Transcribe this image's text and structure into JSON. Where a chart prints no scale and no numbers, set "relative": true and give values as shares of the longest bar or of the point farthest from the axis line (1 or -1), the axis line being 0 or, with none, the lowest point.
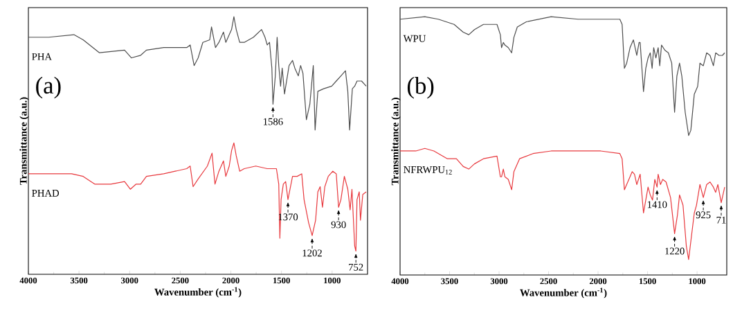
{
  "chart_data": [
    {
      "type": "line",
      "relative": true,
      "xlim": [
        4000,
        650
      ],
      "xticks": [
        4000,
        3500,
        3000,
        2500,
        2000,
        1500,
        1000
      ],
      "xlabel": "Wavenumber (cm$^{-1}$)",
      "ylabel": "Transmittance (a.u.)",
      "series": [
        {
          "name": "PHA",
          "color": "#4d4d4d",
          "x": [
            4000,
            3800,
            3550,
            3459,
            3300,
            3050,
            2982,
            2891,
            2834,
            2663,
            2550,
            2436,
            2402,
            2363,
            2323,
            2277,
            2209,
            2191,
            2152,
            2118,
            2073,
            2050,
            2016,
            1993,
            1970,
            1947,
            1913,
            1868,
            1777,
            1697,
            1663,
            1641,
            1618,
            1595,
            1584,
            1561,
            1543,
            1527,
            1509,
            1493,
            1470,
            1425,
            1391,
            1368,
            1334,
            1311,
            1288,
            1254,
            1220,
            1186,
            1168,
            1141,
            1084,
            1004,
            959,
            913,
            868,
            845,
            827,
            800,
            777,
            754,
            709,
            663
          ],
          "values": [
            0.92,
            0.92,
            0.93,
            0.91,
            0.86,
            0.87,
            0.84,
            0.85,
            0.87,
            0.88,
            0.88,
            0.88,
            0.89,
            0.81,
            0.84,
            0.9,
            0.91,
            0.96,
            0.88,
            0.9,
            0.94,
            0.9,
            0.93,
            0.95,
            1.0,
            0.95,
            0.9,
            0.9,
            0.92,
            0.95,
            0.92,
            0.89,
            0.9,
            0.8,
            0.66,
            0.77,
            0.92,
            0.81,
            0.73,
            0.8,
            0.7,
            0.81,
            0.83,
            0.8,
            0.77,
            0.81,
            0.78,
            0.6,
            0.66,
            0.81,
            0.56,
            0.71,
            0.72,
            0.73,
            0.75,
            0.77,
            0.79,
            0.71,
            0.56,
            0.72,
            0.73,
            0.75,
            0.75,
            0.73
          ]
        },
        {
          "name": "PHAD",
          "color": "#e8383d",
          "x": [
            4000,
            3800,
            3686,
            3573,
            3459,
            3345,
            3186,
            3050,
            2993,
            2936,
            2891,
            2834,
            2663,
            2550,
            2436,
            2402,
            2373,
            2323,
            2232,
            2186,
            2157,
            2118,
            2073,
            2050,
            2016,
            1993,
            1970,
            1947,
            1913,
            1868,
            1754,
            1641,
            1550,
            1527,
            1516,
            1504,
            1482,
            1459,
            1436,
            1391,
            1345,
            1300,
            1277,
            1232,
            1197,
            1163,
            1141,
            1118,
            1095,
            1072,
            1038,
            993,
            959,
            936,
            913,
            879,
            845,
            822,
            804,
            777,
            765,
            754,
            732,
            720,
            697,
            663
          ],
          "values": [
            0.39,
            0.39,
            0.39,
            0.39,
            0.38,
            0.35,
            0.35,
            0.36,
            0.33,
            0.35,
            0.35,
            0.38,
            0.39,
            0.4,
            0.41,
            0.42,
            0.34,
            0.37,
            0.42,
            0.47,
            0.35,
            0.4,
            0.44,
            0.38,
            0.42,
            0.48,
            0.51,
            0.46,
            0.4,
            0.41,
            0.42,
            0.41,
            0.41,
            0.35,
            0.14,
            0.29,
            0.35,
            0.36,
            0.29,
            0.38,
            0.38,
            0.39,
            0.29,
            0.2,
            0.15,
            0.21,
            0.32,
            0.34,
            0.26,
            0.34,
            0.38,
            0.4,
            0.39,
            0.26,
            0.29,
            0.38,
            0.33,
            0.25,
            0.33,
            0.11,
            0.09,
            0.29,
            0.32,
            0.21,
            0.31,
            0.32
          ]
        }
      ],
      "annotations": [
        "(a)",
        {
          "text": "1586",
          "x": 1584,
          "y": 0.66
        },
        {
          "text": "1370",
          "x": 1436,
          "y": 0.29
        },
        {
          "text": "1202",
          "x": 1197,
          "y": 0.15
        },
        {
          "text": "930",
          "x": 936,
          "y": 0.26
        },
        {
          "text": "752",
          "x": 765,
          "y": 0.09
        }
      ]
    },
    {
      "type": "line",
      "relative": true,
      "xlim": [
        4000,
        700
      ],
      "xticks": [
        4000,
        3500,
        3000,
        2500,
        2000,
        1500,
        1000
      ],
      "xlabel": "Wavenumber (cm$^{-1}$)",
      "ylabel": "Transmittance (a.u.)",
      "series": [
        {
          "name": "WPU",
          "color": "#4d4d4d",
          "x": [
            4000,
            3750,
            3613,
            3454,
            3362,
            3306,
            3249,
            3158,
            3021,
            2987,
            2975,
            2957,
            2941,
            2907,
            2873,
            2850,
            2816,
            2725,
            2474,
            2201,
            1973,
            1780,
            1757,
            1734,
            1711,
            1677,
            1643,
            1609,
            1586,
            1575,
            1564,
            1541,
            1518,
            1495,
            1473,
            1454,
            1438,
            1416,
            1393,
            1377,
            1359,
            1325,
            1290,
            1256,
            1227,
            1204,
            1177,
            1154,
            1120,
            1085,
            1063,
            1028,
            994,
            971,
            937,
            903,
            869,
            835,
            812,
            778,
            744,
            721
          ],
          "values": [
            0.99,
            1.0,
            0.99,
            0.97,
            0.94,
            0.93,
            0.95,
            0.97,
            0.97,
            0.93,
            0.88,
            0.9,
            0.89,
            0.88,
            0.86,
            0.92,
            0.96,
            0.98,
            1.0,
            0.99,
            0.99,
            0.99,
            0.97,
            0.8,
            0.82,
            0.88,
            0.91,
            0.85,
            0.9,
            0.9,
            0.84,
            0.71,
            0.8,
            0.84,
            0.86,
            0.8,
            0.88,
            0.84,
            0.88,
            0.81,
            0.89,
            0.87,
            0.86,
            0.82,
            0.63,
            0.77,
            0.82,
            0.77,
            0.63,
            0.54,
            0.56,
            0.7,
            0.73,
            0.82,
            0.81,
            0.86,
            0.85,
            0.81,
            0.86,
            0.85,
            0.85,
            0.86
          ]
        },
        {
          "name": "NFRWPU$_{12}$",
          "color": "#e8383d",
          "x": [
            4000,
            3841,
            3750,
            3658,
            3522,
            3431,
            3362,
            3306,
            3249,
            3158,
            3021,
            2987,
            2975,
            2957,
            2941,
            2907,
            2873,
            2850,
            2793,
            2657,
            2474,
            2201,
            1973,
            1780,
            1757,
            1734,
            1700,
            1655,
            1632,
            1609,
            1575,
            1541,
            1518,
            1495,
            1473,
            1450,
            1427,
            1404,
            1393,
            1370,
            1347,
            1313,
            1268,
            1227,
            1199,
            1177,
            1142,
            1108,
            1085,
            1063,
            1028,
            1006,
            971,
            937,
            903,
            869,
            835,
            812,
            790,
            756,
            721
          ],
          "values": [
            0.48,
            0.48,
            0.49,
            0.48,
            0.45,
            0.45,
            0.42,
            0.41,
            0.43,
            0.45,
            0.46,
            0.38,
            0.38,
            0.41,
            0.38,
            0.37,
            0.33,
            0.4,
            0.45,
            0.47,
            0.48,
            0.48,
            0.48,
            0.47,
            0.45,
            0.33,
            0.36,
            0.4,
            0.39,
            0.35,
            0.39,
            0.24,
            0.29,
            0.34,
            0.31,
            0.29,
            0.37,
            0.34,
            0.39,
            0.35,
            0.37,
            0.36,
            0.3,
            0.16,
            0.23,
            0.31,
            0.27,
            0.11,
            0.06,
            0.13,
            0.24,
            0.27,
            0.35,
            0.3,
            0.35,
            0.36,
            0.34,
            0.32,
            0.35,
            0.28,
            0.34
          ]
        }
      ],
      "annotations": [
        "(b)",
        {
          "text": "1410",
          "x": 1404,
          "y": 0.34
        },
        {
          "text": "1220",
          "x": 1227,
          "y": 0.16
        },
        {
          "text": "925",
          "x": 937,
          "y": 0.3
        },
        {
          "text": "71",
          "x": 756,
          "y": 0.28
        }
      ]
    }
  ]
}
